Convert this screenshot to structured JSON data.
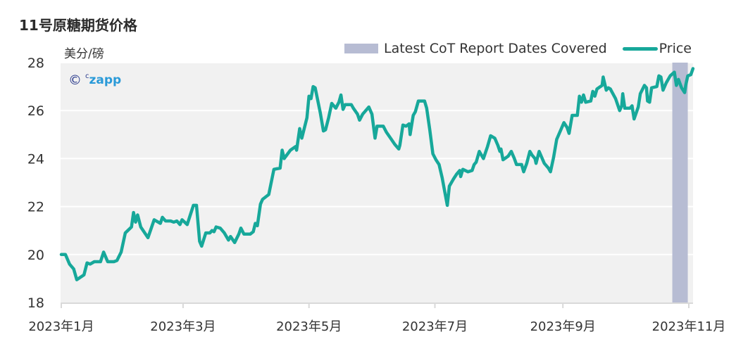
{
  "header": {
    "title": "11号原糖期货价格",
    "unit": "美分/磅"
  },
  "watermark": {
    "symbol": "©",
    "small": "c",
    "text": "zapp"
  },
  "colors": {
    "price_line": "#17a89a",
    "cot_band": "#b7bcd3",
    "plot_bg": "#f1f1f1",
    "grid": "#ffffff",
    "axis": "#d9d9d9"
  },
  "chart_data": {
    "type": "line",
    "title": "11号原糖期货价格",
    "ylabel": "美分/磅",
    "xlabel": "",
    "ylim": [
      18,
      28
    ],
    "yticks": [
      "18",
      "20",
      "22",
      "24",
      "26",
      "28"
    ],
    "xlim_days": [
      0,
      306
    ],
    "grid": true,
    "xticks": [
      {
        "label": "2023年1月",
        "day": 0
      },
      {
        "label": "2023年3月",
        "day": 59
      },
      {
        "label": "2023年5月",
        "day": 120
      },
      {
        "label": "2023年7月",
        "day": 181
      },
      {
        "label": "2023年9月",
        "day": 243
      },
      {
        "label": "2023年11月",
        "day": 304
      }
    ],
    "legend": {
      "position": "top-right",
      "entries": [
        "Latest CoT Report Dates Covered",
        "Price"
      ]
    },
    "cot_band_days": [
      296,
      303.5
    ],
    "series": [
      {
        "name": "Price",
        "points": [
          [
            0,
            20.0
          ],
          [
            2,
            20.0
          ],
          [
            4,
            19.6
          ],
          [
            6,
            19.4
          ],
          [
            7.5,
            18.95
          ],
          [
            11,
            19.15
          ],
          [
            12.5,
            19.65
          ],
          [
            14,
            19.6
          ],
          [
            16,
            19.7
          ],
          [
            19,
            19.7
          ],
          [
            20.5,
            20.1
          ],
          [
            22.5,
            19.7
          ],
          [
            25.5,
            19.7
          ],
          [
            27,
            19.75
          ],
          [
            29,
            20.1
          ],
          [
            31,
            20.9
          ],
          [
            34,
            21.15
          ],
          [
            35,
            21.75
          ],
          [
            36,
            21.35
          ],
          [
            37,
            21.65
          ],
          [
            38.5,
            21.15
          ],
          [
            42,
            20.7
          ],
          [
            45,
            21.45
          ],
          [
            48,
            21.3
          ],
          [
            49,
            21.55
          ],
          [
            50.5,
            21.4
          ],
          [
            53,
            21.4
          ],
          [
            54.5,
            21.35
          ],
          [
            56,
            21.4
          ],
          [
            57.5,
            21.25
          ],
          [
            58.5,
            21.45
          ],
          [
            61,
            21.25
          ],
          [
            62.5,
            21.65
          ],
          [
            64,
            22.05
          ],
          [
            65.5,
            22.05
          ],
          [
            67,
            20.55
          ],
          [
            68,
            20.35
          ],
          [
            70,
            20.9
          ],
          [
            72,
            20.9
          ],
          [
            73,
            21.0
          ],
          [
            74,
            20.95
          ],
          [
            75,
            21.15
          ],
          [
            77,
            21.1
          ],
          [
            79,
            20.9
          ],
          [
            81,
            20.6
          ],
          [
            82,
            20.75
          ],
          [
            84,
            20.5
          ],
          [
            86,
            20.85
          ],
          [
            87,
            21.1
          ],
          [
            88.5,
            20.85
          ],
          [
            91.5,
            20.85
          ],
          [
            93,
            20.95
          ],
          [
            94,
            21.3
          ],
          [
            95,
            21.2
          ],
          [
            96.5,
            22.1
          ],
          [
            97.5,
            22.3
          ],
          [
            100.5,
            22.5
          ],
          [
            103,
            23.55
          ],
          [
            106,
            23.6
          ],
          [
            107,
            24.35
          ],
          [
            108,
            24.0
          ],
          [
            111,
            24.35
          ],
          [
            113.5,
            24.5
          ],
          [
            114,
            24.35
          ],
          [
            115.5,
            25.25
          ],
          [
            116.5,
            24.85
          ],
          [
            119,
            25.7
          ],
          [
            120,
            26.6
          ],
          [
            121,
            26.5
          ],
          [
            122,
            27.0
          ],
          [
            123,
            26.95
          ],
          [
            125.5,
            25.9
          ],
          [
            127,
            25.15
          ],
          [
            128,
            25.2
          ],
          [
            129.5,
            25.7
          ],
          [
            131,
            26.3
          ],
          [
            133,
            26.1
          ],
          [
            134.5,
            26.35
          ],
          [
            135.5,
            26.65
          ],
          [
            136.5,
            26.05
          ],
          [
            137.5,
            26.25
          ],
          [
            140.5,
            26.25
          ],
          [
            141.5,
            26.1
          ],
          [
            143.5,
            25.85
          ],
          [
            144.5,
            25.6
          ],
          [
            146,
            25.85
          ],
          [
            149,
            26.15
          ],
          [
            150.5,
            25.85
          ],
          [
            152,
            24.85
          ],
          [
            153,
            25.35
          ],
          [
            156,
            25.35
          ],
          [
            157.5,
            25.1
          ],
          [
            159.5,
            24.85
          ],
          [
            161.5,
            24.6
          ],
          [
            163.5,
            24.4
          ],
          [
            164,
            24.55
          ],
          [
            165.5,
            25.4
          ],
          [
            167,
            25.35
          ],
          [
            168.5,
            25.45
          ],
          [
            169,
            25.0
          ],
          [
            170.5,
            25.8
          ],
          [
            171.5,
            25.95
          ],
          [
            173,
            26.4
          ],
          [
            176,
            26.4
          ],
          [
            177,
            26.1
          ],
          [
            178.5,
            25.2
          ],
          [
            180,
            24.2
          ],
          [
            181.5,
            23.95
          ],
          [
            183,
            23.75
          ],
          [
            184.5,
            23.2
          ],
          [
            186,
            22.5
          ],
          [
            187,
            22.05
          ],
          [
            188,
            22.85
          ],
          [
            190,
            23.15
          ],
          [
            191.5,
            23.35
          ],
          [
            193,
            23.5
          ],
          [
            193.5,
            23.25
          ],
          [
            194.5,
            23.55
          ],
          [
            197,
            23.45
          ],
          [
            199,
            23.5
          ],
          [
            200,
            23.75
          ],
          [
            201,
            23.85
          ],
          [
            202.5,
            24.3
          ],
          [
            204.5,
            24.0
          ],
          [
            206.5,
            24.5
          ],
          [
            208,
            24.95
          ],
          [
            210,
            24.85
          ],
          [
            211.5,
            24.55
          ],
          [
            212.5,
            24.3
          ],
          [
            213,
            24.4
          ],
          [
            214,
            23.95
          ],
          [
            216.5,
            24.1
          ],
          [
            218,
            24.3
          ],
          [
            219.5,
            24.0
          ],
          [
            220.5,
            23.75
          ],
          [
            223,
            23.75
          ],
          [
            224,
            23.45
          ],
          [
            225.5,
            23.8
          ],
          [
            227,
            24.3
          ],
          [
            228,
            24.15
          ],
          [
            229.5,
            24.0
          ],
          [
            230,
            23.8
          ],
          [
            231.5,
            24.3
          ],
          [
            232.5,
            24.1
          ],
          [
            234,
            23.8
          ],
          [
            236,
            23.6
          ],
          [
            237,
            23.45
          ],
          [
            238.5,
            24.05
          ],
          [
            240,
            24.8
          ],
          [
            242,
            25.2
          ],
          [
            243.5,
            25.5
          ],
          [
            245,
            25.3
          ],
          [
            246,
            25.05
          ],
          [
            247.5,
            25.8
          ],
          [
            250,
            25.8
          ],
          [
            251,
            26.6
          ],
          [
            252,
            26.35
          ],
          [
            253,
            26.65
          ],
          [
            254,
            26.35
          ],
          [
            256.5,
            26.4
          ],
          [
            257.5,
            26.8
          ],
          [
            258.5,
            26.6
          ],
          [
            259.5,
            26.9
          ],
          [
            262,
            27.05
          ],
          [
            262.5,
            27.4
          ],
          [
            264,
            26.85
          ],
          [
            265,
            26.95
          ],
          [
            266,
            26.9
          ],
          [
            268.5,
            26.5
          ],
          [
            270.5,
            26.0
          ],
          [
            271.5,
            26.2
          ],
          [
            272,
            26.7
          ],
          [
            273,
            26.1
          ],
          [
            275.5,
            26.1
          ],
          [
            276.5,
            26.2
          ],
          [
            277.5,
            25.65
          ],
          [
            279.5,
            26.15
          ],
          [
            280.5,
            26.7
          ],
          [
            282.5,
            27.05
          ],
          [
            283.5,
            26.95
          ],
          [
            284,
            26.4
          ],
          [
            285,
            26.35
          ],
          [
            286,
            26.95
          ],
          [
            288.5,
            27.0
          ],
          [
            289.5,
            27.45
          ],
          [
            290.5,
            27.4
          ],
          [
            291.5,
            26.85
          ],
          [
            293,
            27.15
          ],
          [
            295,
            27.45
          ],
          [
            297,
            27.6
          ],
          [
            298,
            27.05
          ],
          [
            299,
            27.3
          ],
          [
            300.5,
            26.95
          ],
          [
            302,
            26.75
          ],
          [
            302.5,
            27.05
          ],
          [
            303.5,
            27.45
          ],
          [
            305,
            27.5
          ],
          [
            306,
            27.75
          ]
        ]
      }
    ]
  }
}
